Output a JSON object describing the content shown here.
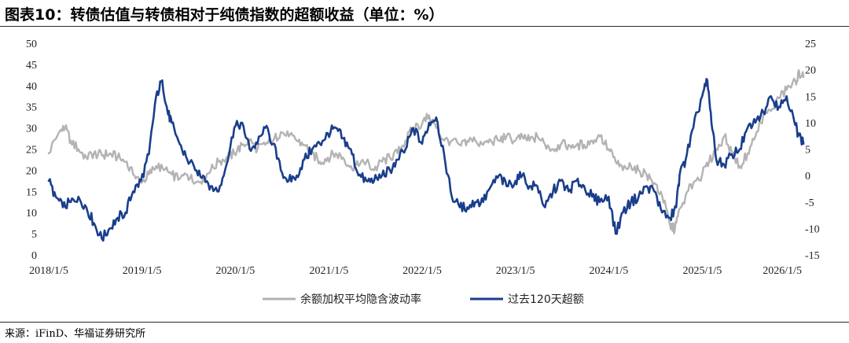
{
  "title": "图表10：转债估值与转债相对于纯债指数的超额收益（单位：%）",
  "source": "来源：iFinD、华福证券研究所",
  "chart_data": {
    "type": "line",
    "x_ticks": [
      "2018/1/5",
      "2019/1/5",
      "2020/1/5",
      "2021/1/5",
      "2022/1/5",
      "2023/1/5",
      "2024/1/5",
      "2025/1/5",
      "2026/1/5"
    ],
    "x_range": [
      "2018/1/5",
      "2026/1/5"
    ],
    "ylim_left": [
      0,
      50
    ],
    "yticks_left": [
      "0",
      "5",
      "10",
      "15",
      "20",
      "25",
      "30",
      "35",
      "40",
      "45",
      "50"
    ],
    "ylim_right": [
      -15,
      25
    ],
    "yticks_right": [
      "-15",
      "-10",
      "-5",
      "0",
      "5",
      "10",
      "15",
      "20",
      "25"
    ],
    "grid": false,
    "legend_position": "bottom",
    "series": [
      {
        "name": "余额加权平均隐含波动率",
        "axis": "left",
        "color": "#b3b3b3",
        "points": [
          [
            "2018-01-05",
            24
          ],
          [
            "2018-02-15",
            29
          ],
          [
            "2018-03-10",
            30
          ],
          [
            "2018-04-01",
            27
          ],
          [
            "2018-05-01",
            25
          ],
          [
            "2018-06-01",
            23
          ],
          [
            "2018-07-01",
            24
          ],
          [
            "2018-08-01",
            23.5
          ],
          [
            "2018-09-01",
            24
          ],
          [
            "2018-10-01",
            23
          ],
          [
            "2018-11-01",
            22
          ],
          [
            "2018-12-01",
            19
          ],
          [
            "2019-01-01",
            17
          ],
          [
            "2019-02-01",
            19
          ],
          [
            "2019-03-01",
            21
          ],
          [
            "2019-04-01",
            20
          ],
          [
            "2019-05-01",
            19
          ],
          [
            "2019-06-01",
            18
          ],
          [
            "2019-07-01",
            19
          ],
          [
            "2019-08-01",
            17
          ],
          [
            "2019-09-01",
            18
          ],
          [
            "2019-10-01",
            20
          ],
          [
            "2019-11-01",
            22
          ],
          [
            "2019-12-01",
            23
          ],
          [
            "2020-01-01",
            24
          ],
          [
            "2020-02-01",
            26
          ],
          [
            "2020-03-01",
            27
          ],
          [
            "2020-04-01",
            25
          ],
          [
            "2020-05-01",
            26
          ],
          [
            "2020-06-01",
            27
          ],
          [
            "2020-07-01",
            29
          ],
          [
            "2020-08-01",
            28
          ],
          [
            "2020-09-01",
            27
          ],
          [
            "2020-10-01",
            26
          ],
          [
            "2020-11-01",
            24
          ],
          [
            "2020-12-01",
            22
          ],
          [
            "2021-01-01",
            23
          ],
          [
            "2021-02-01",
            24
          ],
          [
            "2021-03-01",
            23
          ],
          [
            "2021-04-01",
            21
          ],
          [
            "2021-05-01",
            21
          ],
          [
            "2021-06-01",
            22
          ],
          [
            "2021-07-01",
            20
          ],
          [
            "2021-08-01",
            22
          ],
          [
            "2021-09-01",
            23
          ],
          [
            "2021-10-01",
            24
          ],
          [
            "2021-11-01",
            27
          ],
          [
            "2021-12-01",
            30
          ],
          [
            "2022-01-05",
            31
          ],
          [
            "2022-02-01",
            33
          ],
          [
            "2022-03-01",
            30
          ],
          [
            "2022-04-01",
            27
          ],
          [
            "2022-05-01",
            27
          ],
          [
            "2022-06-01",
            26
          ],
          [
            "2022-07-01",
            27
          ],
          [
            "2022-08-01",
            27
          ],
          [
            "2022-09-01",
            26
          ],
          [
            "2022-10-01",
            27
          ],
          [
            "2022-11-01",
            27
          ],
          [
            "2022-12-01",
            28
          ],
          [
            "2023-01-05",
            27
          ],
          [
            "2023-02-01",
            28
          ],
          [
            "2023-03-01",
            27
          ],
          [
            "2023-04-01",
            28
          ],
          [
            "2023-05-01",
            26
          ],
          [
            "2023-06-01",
            25
          ],
          [
            "2023-07-01",
            26
          ],
          [
            "2023-08-01",
            26
          ],
          [
            "2023-09-01",
            26
          ],
          [
            "2023-10-01",
            26
          ],
          [
            "2023-11-01",
            27
          ],
          [
            "2023-12-01",
            28
          ],
          [
            "2024-01-05",
            25
          ],
          [
            "2024-02-01",
            22
          ],
          [
            "2024-03-01",
            20
          ],
          [
            "2024-04-01",
            21
          ],
          [
            "2024-05-01",
            20
          ],
          [
            "2024-06-01",
            19
          ],
          [
            "2024-07-01",
            17
          ],
          [
            "2024-08-01",
            14
          ],
          [
            "2024-09-01",
            7
          ],
          [
            "2024-09-20",
            6
          ],
          [
            "2024-10-01",
            9
          ],
          [
            "2024-11-01",
            14
          ],
          [
            "2024-12-01",
            17
          ],
          [
            "2025-01-05",
            19
          ],
          [
            "2025-02-01",
            22
          ],
          [
            "2025-03-01",
            25
          ],
          [
            "2025-04-01",
            28
          ],
          [
            "2025-05-01",
            24
          ],
          [
            "2025-06-01",
            21
          ],
          [
            "2025-07-01",
            24
          ],
          [
            "2025-08-01",
            28
          ],
          [
            "2025-09-01",
            33
          ],
          [
            "2025-10-01",
            34
          ],
          [
            "2025-11-01",
            37
          ],
          [
            "2025-12-01",
            39
          ],
          [
            "2026-01-05",
            41
          ],
          [
            "2026-01-20",
            43
          ],
          [
            "2026-02-05",
            42
          ]
        ]
      },
      {
        "name": "过去120天超额",
        "axis": "right",
        "color": "#1a3e8c",
        "points": [
          [
            "2018-01-05",
            -1
          ],
          [
            "2018-02-01",
            -4
          ],
          [
            "2018-03-01",
            -6
          ],
          [
            "2018-04-01",
            -5
          ],
          [
            "2018-05-01",
            -4
          ],
          [
            "2018-06-01",
            -6
          ],
          [
            "2018-07-01",
            -9
          ],
          [
            "2018-08-01",
            -12
          ],
          [
            "2018-09-01",
            -10
          ],
          [
            "2018-10-01",
            -8
          ],
          [
            "2018-11-01",
            -7
          ],
          [
            "2018-12-01",
            -3
          ],
          [
            "2019-01-01",
            -1
          ],
          [
            "2019-02-01",
            4
          ],
          [
            "2019-03-01",
            15
          ],
          [
            "2019-03-25",
            18
          ],
          [
            "2019-04-15",
            12
          ],
          [
            "2019-05-01",
            10
          ],
          [
            "2019-06-01",
            6
          ],
          [
            "2019-07-01",
            3
          ],
          [
            "2019-08-01",
            1
          ],
          [
            "2019-09-01",
            0
          ],
          [
            "2019-10-01",
            -2
          ],
          [
            "2019-11-01",
            -3
          ],
          [
            "2019-12-01",
            2
          ],
          [
            "2020-01-01",
            9
          ],
          [
            "2020-02-01",
            10
          ],
          [
            "2020-03-01",
            5
          ],
          [
            "2020-04-01",
            6
          ],
          [
            "2020-05-01",
            9
          ],
          [
            "2020-06-01",
            6
          ],
          [
            "2020-07-01",
            1
          ],
          [
            "2020-08-01",
            -1
          ],
          [
            "2020-09-01",
            0
          ],
          [
            "2020-10-01",
            3
          ],
          [
            "2020-11-01",
            5
          ],
          [
            "2020-12-01",
            6
          ],
          [
            "2021-01-01",
            8
          ],
          [
            "2021-02-01",
            9
          ],
          [
            "2021-03-01",
            7
          ],
          [
            "2021-04-01",
            5
          ],
          [
            "2021-05-01",
            0
          ],
          [
            "2021-06-01",
            -1
          ],
          [
            "2021-07-01",
            -1
          ],
          [
            "2021-08-01",
            0
          ],
          [
            "2021-09-01",
            1
          ],
          [
            "2021-10-01",
            3
          ],
          [
            "2021-11-01",
            5
          ],
          [
            "2021-12-01",
            9
          ],
          [
            "2022-01-05",
            6
          ],
          [
            "2022-02-01",
            10
          ],
          [
            "2022-03-01",
            11
          ],
          [
            "2022-04-01",
            4
          ],
          [
            "2022-05-01",
            -4
          ],
          [
            "2022-06-01",
            -6
          ],
          [
            "2022-07-01",
            -6
          ],
          [
            "2022-08-01",
            -5
          ],
          [
            "2022-09-01",
            -5
          ],
          [
            "2022-10-01",
            -2
          ],
          [
            "2022-11-01",
            0
          ],
          [
            "2022-12-01",
            -2
          ],
          [
            "2023-01-05",
            -1
          ],
          [
            "2023-02-01",
            0
          ],
          [
            "2023-03-01",
            -2
          ],
          [
            "2023-04-01",
            -2
          ],
          [
            "2023-05-01",
            -6
          ],
          [
            "2023-06-01",
            -3
          ],
          [
            "2023-07-01",
            -1
          ],
          [
            "2023-08-01",
            -3
          ],
          [
            "2023-09-01",
            -1
          ],
          [
            "2023-10-01",
            -2
          ],
          [
            "2023-11-01",
            -4
          ],
          [
            "2023-12-01",
            -5
          ],
          [
            "2024-01-05",
            -4
          ],
          [
            "2024-02-01",
            -11
          ],
          [
            "2024-03-01",
            -7
          ],
          [
            "2024-04-01",
            -5
          ],
          [
            "2024-05-01",
            -4
          ],
          [
            "2024-06-01",
            -2
          ],
          [
            "2024-07-01",
            -3
          ],
          [
            "2024-08-01",
            -7
          ],
          [
            "2024-09-01",
            -8
          ],
          [
            "2024-09-25",
            -6
          ],
          [
            "2024-10-08",
            0
          ],
          [
            "2024-11-01",
            3
          ],
          [
            "2024-12-01",
            9
          ],
          [
            "2025-01-05",
            15
          ],
          [
            "2025-01-25",
            18
          ],
          [
            "2025-02-10",
            10
          ],
          [
            "2025-03-01",
            3
          ],
          [
            "2025-04-01",
            2
          ],
          [
            "2025-05-01",
            4
          ],
          [
            "2025-06-01",
            5
          ],
          [
            "2025-07-01",
            9
          ],
          [
            "2025-08-01",
            10
          ],
          [
            "2025-09-01",
            12
          ],
          [
            "2025-10-01",
            15
          ],
          [
            "2025-11-01",
            13
          ],
          [
            "2025-12-01",
            15
          ],
          [
            "2026-01-01",
            10
          ],
          [
            "2026-01-15",
            8
          ],
          [
            "2026-02-05",
            6
          ]
        ]
      }
    ]
  }
}
